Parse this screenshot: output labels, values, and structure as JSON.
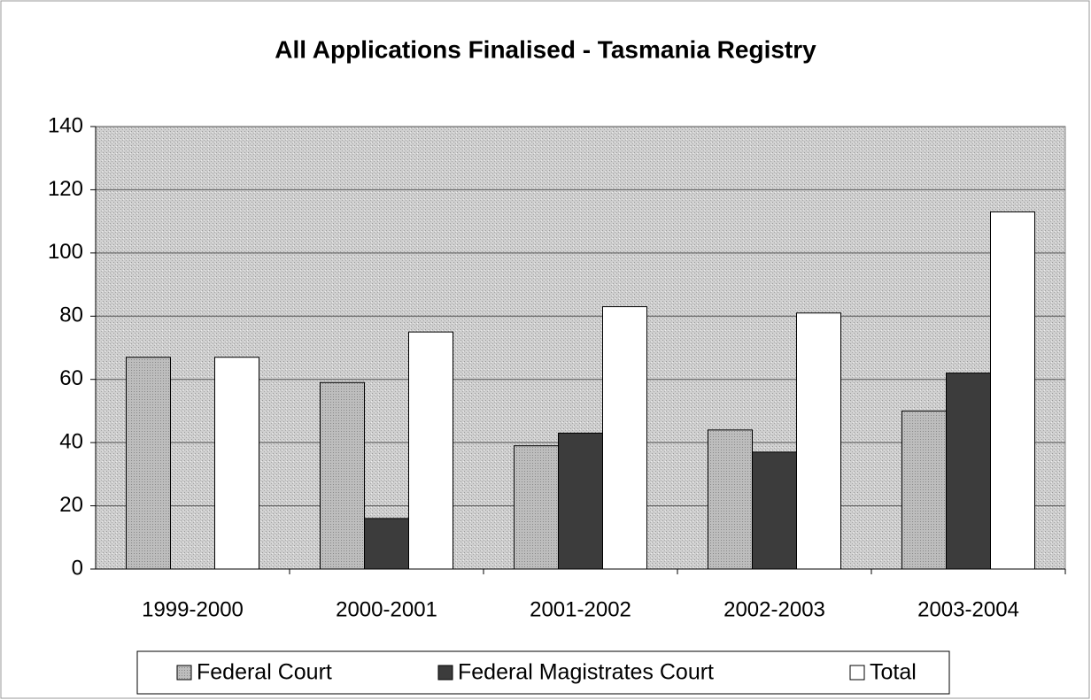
{
  "chart_data": {
    "type": "bar",
    "title": "All Applications Finalised - Tasmania Registry",
    "categories": [
      "1999-2000",
      "2000-2001",
      "2001-2002",
      "2002-2003",
      "2003-2004"
    ],
    "series": [
      {
        "name": "Federal Court",
        "color": "#b4b4b4",
        "values": [
          67,
          59,
          39,
          44,
          50
        ]
      },
      {
        "name": "Federal Magistrates Court",
        "color": "#3c3c3c",
        "values": [
          0,
          16,
          43,
          37,
          62
        ]
      },
      {
        "name": "Total",
        "color": "#ffffff",
        "values": [
          67,
          75,
          83,
          81,
          113
        ]
      }
    ],
    "ylim": [
      0,
      140
    ],
    "yticks": [
      0,
      20,
      40,
      60,
      80,
      100,
      120,
      140
    ],
    "grid": true,
    "legend": "bottom"
  }
}
